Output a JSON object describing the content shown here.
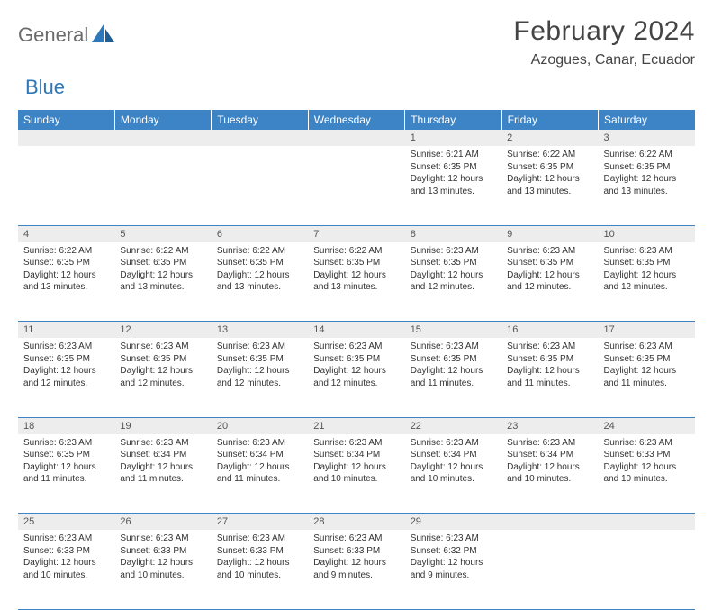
{
  "logo": {
    "part1": "General",
    "part2": "Blue"
  },
  "title": "February 2024",
  "location": "Azogues, Canar, Ecuador",
  "colors": {
    "header_bg": "#3c84c6",
    "header_text": "#ffffff",
    "daynum_bg": "#ededed",
    "border": "#3c84c6",
    "logo_gray": "#6b6b6b",
    "logo_blue": "#2e77b8"
  },
  "typography": {
    "title_fontsize": 30,
    "location_fontsize": 16,
    "header_fontsize": 12,
    "daynum_fontsize": 11,
    "body_fontsize": 10
  },
  "weekdays": [
    "Sunday",
    "Monday",
    "Tuesday",
    "Wednesday",
    "Thursday",
    "Friday",
    "Saturday"
  ],
  "weeks": [
    [
      null,
      null,
      null,
      null,
      {
        "n": "1",
        "sunrise": "Sunrise: 6:21 AM",
        "sunset": "Sunset: 6:35 PM",
        "day1": "Daylight: 12 hours",
        "day2": "and 13 minutes."
      },
      {
        "n": "2",
        "sunrise": "Sunrise: 6:22 AM",
        "sunset": "Sunset: 6:35 PM",
        "day1": "Daylight: 12 hours",
        "day2": "and 13 minutes."
      },
      {
        "n": "3",
        "sunrise": "Sunrise: 6:22 AM",
        "sunset": "Sunset: 6:35 PM",
        "day1": "Daylight: 12 hours",
        "day2": "and 13 minutes."
      }
    ],
    [
      {
        "n": "4",
        "sunrise": "Sunrise: 6:22 AM",
        "sunset": "Sunset: 6:35 PM",
        "day1": "Daylight: 12 hours",
        "day2": "and 13 minutes."
      },
      {
        "n": "5",
        "sunrise": "Sunrise: 6:22 AM",
        "sunset": "Sunset: 6:35 PM",
        "day1": "Daylight: 12 hours",
        "day2": "and 13 minutes."
      },
      {
        "n": "6",
        "sunrise": "Sunrise: 6:22 AM",
        "sunset": "Sunset: 6:35 PM",
        "day1": "Daylight: 12 hours",
        "day2": "and 13 minutes."
      },
      {
        "n": "7",
        "sunrise": "Sunrise: 6:22 AM",
        "sunset": "Sunset: 6:35 PM",
        "day1": "Daylight: 12 hours",
        "day2": "and 13 minutes."
      },
      {
        "n": "8",
        "sunrise": "Sunrise: 6:23 AM",
        "sunset": "Sunset: 6:35 PM",
        "day1": "Daylight: 12 hours",
        "day2": "and 12 minutes."
      },
      {
        "n": "9",
        "sunrise": "Sunrise: 6:23 AM",
        "sunset": "Sunset: 6:35 PM",
        "day1": "Daylight: 12 hours",
        "day2": "and 12 minutes."
      },
      {
        "n": "10",
        "sunrise": "Sunrise: 6:23 AM",
        "sunset": "Sunset: 6:35 PM",
        "day1": "Daylight: 12 hours",
        "day2": "and 12 minutes."
      }
    ],
    [
      {
        "n": "11",
        "sunrise": "Sunrise: 6:23 AM",
        "sunset": "Sunset: 6:35 PM",
        "day1": "Daylight: 12 hours",
        "day2": "and 12 minutes."
      },
      {
        "n": "12",
        "sunrise": "Sunrise: 6:23 AM",
        "sunset": "Sunset: 6:35 PM",
        "day1": "Daylight: 12 hours",
        "day2": "and 12 minutes."
      },
      {
        "n": "13",
        "sunrise": "Sunrise: 6:23 AM",
        "sunset": "Sunset: 6:35 PM",
        "day1": "Daylight: 12 hours",
        "day2": "and 12 minutes."
      },
      {
        "n": "14",
        "sunrise": "Sunrise: 6:23 AM",
        "sunset": "Sunset: 6:35 PM",
        "day1": "Daylight: 12 hours",
        "day2": "and 12 minutes."
      },
      {
        "n": "15",
        "sunrise": "Sunrise: 6:23 AM",
        "sunset": "Sunset: 6:35 PM",
        "day1": "Daylight: 12 hours",
        "day2": "and 11 minutes."
      },
      {
        "n": "16",
        "sunrise": "Sunrise: 6:23 AM",
        "sunset": "Sunset: 6:35 PM",
        "day1": "Daylight: 12 hours",
        "day2": "and 11 minutes."
      },
      {
        "n": "17",
        "sunrise": "Sunrise: 6:23 AM",
        "sunset": "Sunset: 6:35 PM",
        "day1": "Daylight: 12 hours",
        "day2": "and 11 minutes."
      }
    ],
    [
      {
        "n": "18",
        "sunrise": "Sunrise: 6:23 AM",
        "sunset": "Sunset: 6:35 PM",
        "day1": "Daylight: 12 hours",
        "day2": "and 11 minutes."
      },
      {
        "n": "19",
        "sunrise": "Sunrise: 6:23 AM",
        "sunset": "Sunset: 6:34 PM",
        "day1": "Daylight: 12 hours",
        "day2": "and 11 minutes."
      },
      {
        "n": "20",
        "sunrise": "Sunrise: 6:23 AM",
        "sunset": "Sunset: 6:34 PM",
        "day1": "Daylight: 12 hours",
        "day2": "and 11 minutes."
      },
      {
        "n": "21",
        "sunrise": "Sunrise: 6:23 AM",
        "sunset": "Sunset: 6:34 PM",
        "day1": "Daylight: 12 hours",
        "day2": "and 10 minutes."
      },
      {
        "n": "22",
        "sunrise": "Sunrise: 6:23 AM",
        "sunset": "Sunset: 6:34 PM",
        "day1": "Daylight: 12 hours",
        "day2": "and 10 minutes."
      },
      {
        "n": "23",
        "sunrise": "Sunrise: 6:23 AM",
        "sunset": "Sunset: 6:34 PM",
        "day1": "Daylight: 12 hours",
        "day2": "and 10 minutes."
      },
      {
        "n": "24",
        "sunrise": "Sunrise: 6:23 AM",
        "sunset": "Sunset: 6:33 PM",
        "day1": "Daylight: 12 hours",
        "day2": "and 10 minutes."
      }
    ],
    [
      {
        "n": "25",
        "sunrise": "Sunrise: 6:23 AM",
        "sunset": "Sunset: 6:33 PM",
        "day1": "Daylight: 12 hours",
        "day2": "and 10 minutes."
      },
      {
        "n": "26",
        "sunrise": "Sunrise: 6:23 AM",
        "sunset": "Sunset: 6:33 PM",
        "day1": "Daylight: 12 hours",
        "day2": "and 10 minutes."
      },
      {
        "n": "27",
        "sunrise": "Sunrise: 6:23 AM",
        "sunset": "Sunset: 6:33 PM",
        "day1": "Daylight: 12 hours",
        "day2": "and 10 minutes."
      },
      {
        "n": "28",
        "sunrise": "Sunrise: 6:23 AM",
        "sunset": "Sunset: 6:33 PM",
        "day1": "Daylight: 12 hours",
        "day2": "and 9 minutes."
      },
      {
        "n": "29",
        "sunrise": "Sunrise: 6:23 AM",
        "sunset": "Sunset: 6:32 PM",
        "day1": "Daylight: 12 hours",
        "day2": "and 9 minutes."
      },
      null,
      null
    ]
  ]
}
